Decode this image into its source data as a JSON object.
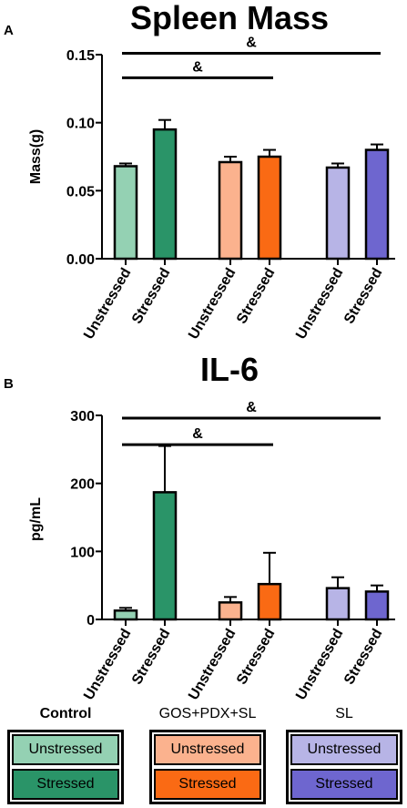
{
  "chart_data": [
    {
      "type": "bar",
      "panel_label": "A",
      "title": "Spleen Mass",
      "ylabel": "Mass(g)",
      "ylim": [
        0,
        0.15
      ],
      "yticks": [
        "0.00",
        "0.05",
        "0.10",
        "0.15"
      ],
      "ytick_values": [
        0,
        0.05,
        0.1,
        0.15
      ],
      "categories": [
        "Unstressed",
        "Stressed",
        "Unstressed",
        "Stressed",
        "Unstressed",
        "Stressed"
      ],
      "groups": [
        "Control",
        "Control",
        "GOS+PDX+SL",
        "GOS+PDX+SL",
        "SL",
        "SL"
      ],
      "values": [
        0.068,
        0.095,
        0.071,
        0.075,
        0.067,
        0.08
      ],
      "error": [
        0.002,
        0.007,
        0.004,
        0.005,
        0.003,
        0.004
      ],
      "annotations": [
        {
          "text": "&",
          "from": 0,
          "to": 5,
          "y": 0.151
        },
        {
          "text": "&",
          "from": 0,
          "to": 3,
          "y": 0.133
        }
      ]
    },
    {
      "type": "bar",
      "panel_label": "B",
      "title": "IL-6",
      "ylabel": "pg/mL",
      "ylim": [
        0,
        300
      ],
      "yticks": [
        "0",
        "100",
        "200",
        "300"
      ],
      "ytick_values": [
        0,
        100,
        200,
        300
      ],
      "categories": [
        "Unstressed",
        "Stressed",
        "Unstressed",
        "Stressed",
        "Unstressed",
        "Stressed"
      ],
      "groups": [
        "Control",
        "Control",
        "GOS+PDX+SL",
        "GOS+PDX+SL",
        "SL",
        "SL"
      ],
      "values": [
        13,
        187,
        25,
        52,
        46,
        41
      ],
      "error": [
        4,
        68,
        8,
        46,
        16,
        9
      ],
      "annotations": [
        {
          "text": "&",
          "from": 0,
          "to": 5,
          "y": 296
        },
        {
          "text": "&",
          "from": 0,
          "to": 3,
          "y": 257
        }
      ]
    }
  ],
  "colors": [
    "#94d1b3",
    "#2a9468",
    "#fbb28e",
    "#fa6a14",
    "#b7b4e6",
    "#6e66cf"
  ],
  "legend": [
    {
      "title": "Control",
      "bold": true,
      "items": [
        {
          "label": "Unstressed",
          "color": "#94d1b3"
        },
        {
          "label": "Stressed",
          "color": "#2a9468"
        }
      ]
    },
    {
      "title": "GOS+PDX+SL",
      "bold": false,
      "items": [
        {
          "label": "Unstressed",
          "color": "#fbb28e"
        },
        {
          "label": "Stressed",
          "color": "#fa6a14"
        }
      ]
    },
    {
      "title": "SL",
      "bold": false,
      "items": [
        {
          "label": "Unstressed",
          "color": "#b7b4e6"
        },
        {
          "label": "Stressed",
          "color": "#6e66cf"
        }
      ]
    }
  ]
}
